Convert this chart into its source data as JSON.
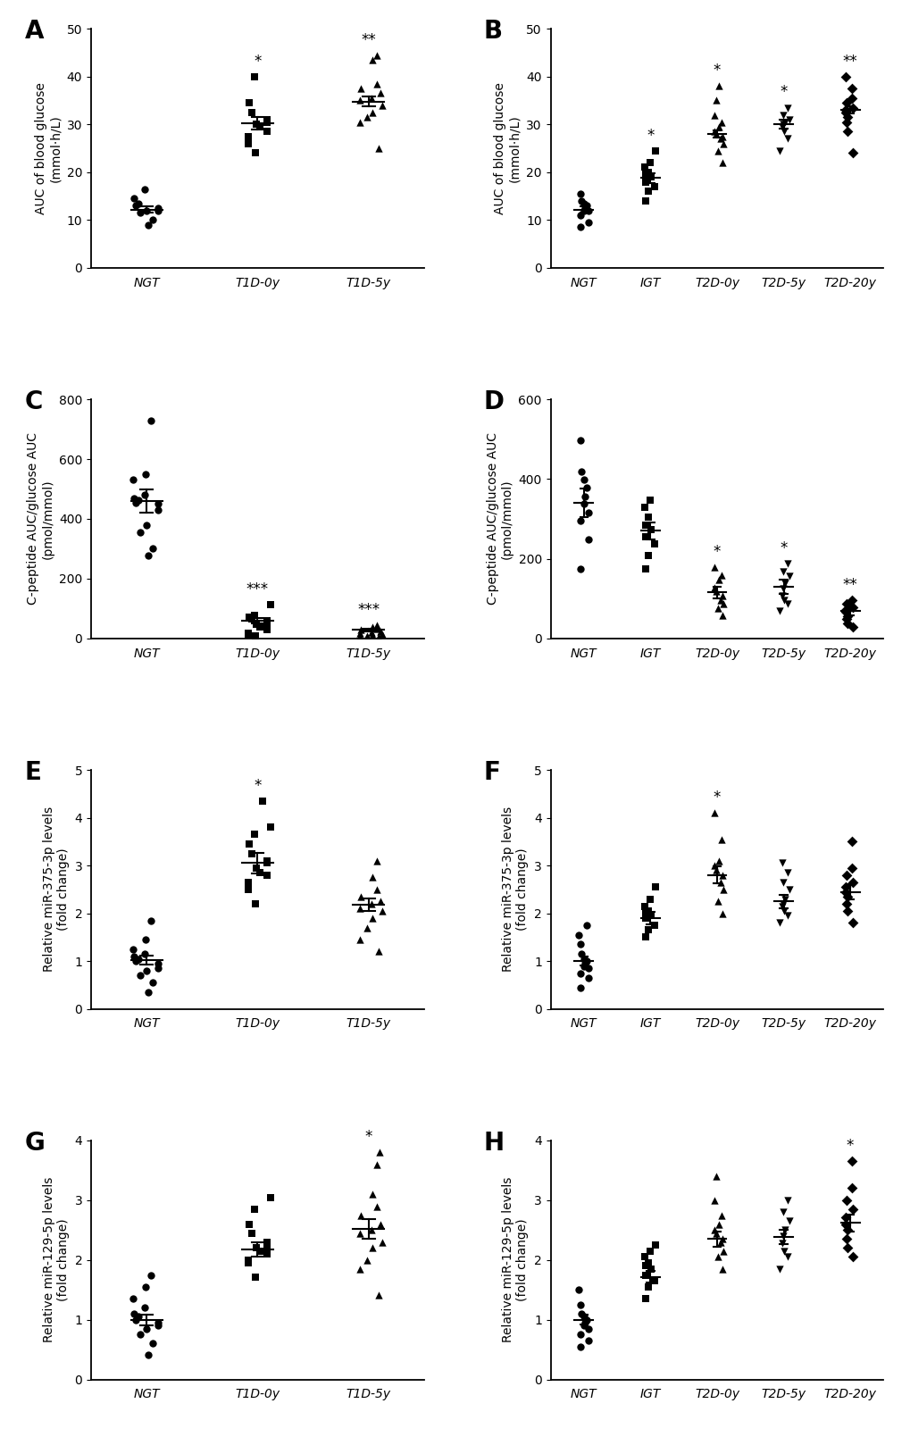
{
  "panels": {
    "A": {
      "label": "A",
      "xlabel_groups": [
        "NGT",
        "T1D-0y",
        "T1D-5y"
      ],
      "ylabel": "AUC of blood glucose\n(mmol·h/L)",
      "ylim": [
        0,
        50
      ],
      "yticks": [
        0,
        10,
        20,
        30,
        40,
        50
      ],
      "markers": [
        "o",
        "s",
        "^"
      ],
      "means": [
        12.2,
        30.2,
        34.8
      ],
      "sems": [
        0.6,
        1.3,
        1.1
      ],
      "significance": [
        "",
        "*",
        "**"
      ],
      "data": [
        [
          9.0,
          10.0,
          11.5,
          12.0,
          12.0,
          12.5,
          13.0,
          13.5,
          14.5,
          16.5
        ],
        [
          24.0,
          26.0,
          27.5,
          28.5,
          29.5,
          30.0,
          30.5,
          31.0,
          32.5,
          34.5,
          40.0
        ],
        [
          25.0,
          30.5,
          31.5,
          32.5,
          34.0,
          35.0,
          35.5,
          36.5,
          37.5,
          38.5,
          43.5,
          44.5
        ]
      ]
    },
    "B": {
      "label": "B",
      "xlabel_groups": [
        "NGT",
        "IGT",
        "T2D-0y",
        "T2D-5y",
        "T2D-20y"
      ],
      "ylabel": "AUC of blood glucose\n(mmol·h/L)",
      "ylim": [
        0,
        50
      ],
      "yticks": [
        0,
        10,
        20,
        30,
        40,
        50
      ],
      "markers": [
        "o",
        "s",
        "^",
        "v",
        "D"
      ],
      "means": [
        12.2,
        18.8,
        28.0,
        30.0,
        33.0
      ],
      "sems": [
        0.6,
        1.0,
        0.7,
        0.9,
        0.8
      ],
      "significance": [
        "",
        "*",
        "*",
        "*",
        "**"
      ],
      "data": [
        [
          8.5,
          9.5,
          11.0,
          12.0,
          12.0,
          12.5,
          13.0,
          13.5,
          14.0,
          15.5
        ],
        [
          14.0,
          16.0,
          17.0,
          18.0,
          19.0,
          19.5,
          20.0,
          21.0,
          22.0,
          24.5
        ],
        [
          22.0,
          24.5,
          26.0,
          27.0,
          27.5,
          28.0,
          28.5,
          29.5,
          30.5,
          32.0,
          35.0,
          38.0
        ],
        [
          24.5,
          27.0,
          28.5,
          29.5,
          30.0,
          30.5,
          31.0,
          32.0,
          33.5
        ],
        [
          24.0,
          28.5,
          30.5,
          31.5,
          32.5,
          33.0,
          33.5,
          34.5,
          35.5,
          37.5,
          40.0
        ]
      ]
    },
    "C": {
      "label": "C",
      "xlabel_groups": [
        "NGT",
        "T1D-0y",
        "T1D-5y"
      ],
      "ylabel": "C-peptide AUC/glucose AUC\n(pmol/mmol)",
      "ylim": [
        0,
        800
      ],
      "yticks": [
        0,
        200,
        400,
        600,
        800
      ],
      "markers": [
        "o",
        "s",
        "^"
      ],
      "means": [
        460,
        58,
        28
      ],
      "sems": [
        38,
        9,
        4
      ],
      "significance": [
        "",
        "***",
        "***"
      ],
      "data": [
        [
          278,
          300,
          355,
          380,
          430,
          450,
          455,
          462,
          470,
          480,
          532,
          548,
          730
        ],
        [
          8,
          12,
          18,
          28,
          38,
          48,
          52,
          58,
          64,
          70,
          78,
          112
        ],
        [
          4,
          7,
          9,
          11,
          14,
          18,
          21,
          24,
          28,
          33,
          38,
          43
        ]
      ]
    },
    "D": {
      "label": "D",
      "xlabel_groups": [
        "NGT",
        "IGT",
        "T2D-0y",
        "T2D-5y",
        "T2D-20y"
      ],
      "ylabel": "C-peptide AUC/glucose AUC\n(pmol/mmol)",
      "ylim": [
        0,
        600
      ],
      "yticks": [
        0,
        200,
        400,
        600
      ],
      "markers": [
        "o",
        "s",
        "^",
        "v",
        "D"
      ],
      "means": [
        340,
        270,
        115,
        130,
        68
      ],
      "sems": [
        35,
        22,
        14,
        18,
        10
      ],
      "significance": [
        "",
        "",
        "*",
        "*",
        "**"
      ],
      "data": [
        [
          175,
          248,
          295,
          315,
          338,
          355,
          378,
          398,
          418,
          498
        ],
        [
          175,
          208,
          238,
          256,
          274,
          285,
          304,
          328,
          348
        ],
        [
          58,
          75,
          88,
          97,
          108,
          118,
          128,
          148,
          158,
          178
        ],
        [
          68,
          88,
          97,
          108,
          126,
          138,
          156,
          167,
          188
        ],
        [
          28,
          38,
          48,
          56,
          67,
          72,
          78,
          88,
          96
        ]
      ]
    },
    "E": {
      "label": "E",
      "xlabel_groups": [
        "NGT",
        "T1D-0y",
        "T1D-5y"
      ],
      "ylabel": "Relative miR-375-3p levels\n(fold change)",
      "ylim": [
        0,
        5
      ],
      "yticks": [
        0,
        1,
        2,
        3,
        4,
        5
      ],
      "markers": [
        "o",
        "s",
        "^"
      ],
      "means": [
        1.02,
        3.05,
        2.18
      ],
      "sems": [
        0.1,
        0.22,
        0.13
      ],
      "significance": [
        "",
        "*",
        ""
      ],
      "data": [
        [
          0.35,
          0.55,
          0.7,
          0.8,
          0.85,
          0.95,
          1.0,
          1.05,
          1.1,
          1.15,
          1.25,
          1.45,
          1.85
        ],
        [
          2.2,
          2.5,
          2.65,
          2.8,
          2.85,
          2.95,
          3.05,
          3.1,
          3.25,
          3.45,
          3.65,
          3.8,
          4.35
        ],
        [
          1.2,
          1.45,
          1.7,
          1.9,
          2.05,
          2.1,
          2.2,
          2.25,
          2.35,
          2.5,
          2.75,
          3.1
        ]
      ]
    },
    "F": {
      "label": "F",
      "xlabel_groups": [
        "NGT",
        "IGT",
        "T2D-0y",
        "T2D-5y",
        "T2D-20y"
      ],
      "ylabel": "Relative miR-375-3p levels\n(fold change)",
      "ylim": [
        0,
        5
      ],
      "yticks": [
        0,
        1,
        2,
        3,
        4,
        5
      ],
      "markers": [
        "o",
        "s",
        "^",
        "v",
        "D"
      ],
      "means": [
        1.0,
        1.9,
        2.8,
        2.25,
        2.45
      ],
      "sems": [
        0.09,
        0.13,
        0.18,
        0.14,
        0.16
      ],
      "significance": [
        "",
        "",
        "*",
        "",
        ""
      ],
      "data": [
        [
          0.45,
          0.65,
          0.75,
          0.85,
          0.9,
          0.95,
          1.0,
          1.05,
          1.15,
          1.35,
          1.55,
          1.75
        ],
        [
          1.5,
          1.65,
          1.75,
          1.9,
          1.95,
          2.0,
          2.05,
          2.15,
          2.3,
          2.55
        ],
        [
          2.0,
          2.25,
          2.5,
          2.65,
          2.8,
          2.9,
          3.0,
          3.1,
          3.55,
          4.1
        ],
        [
          1.8,
          1.95,
          2.05,
          2.15,
          2.2,
          2.3,
          2.5,
          2.65,
          2.85,
          3.05
        ],
        [
          1.8,
          2.05,
          2.2,
          2.35,
          2.45,
          2.55,
          2.65,
          2.8,
          2.95,
          3.5
        ]
      ]
    },
    "G": {
      "label": "G",
      "xlabel_groups": [
        "NGT",
        "T1D-0y",
        "T1D-5y"
      ],
      "ylabel": "Relative miR-129-5p levels\n(fold change)",
      "ylim": [
        0,
        4
      ],
      "yticks": [
        0,
        1,
        2,
        3,
        4
      ],
      "markers": [
        "o",
        "s",
        "^"
      ],
      "means": [
        1.0,
        2.18,
        2.52
      ],
      "sems": [
        0.09,
        0.12,
        0.16
      ],
      "significance": [
        "",
        "",
        "*"
      ],
      "data": [
        [
          0.42,
          0.6,
          0.75,
          0.85,
          0.9,
          0.95,
          1.0,
          1.05,
          1.1,
          1.2,
          1.35,
          1.55,
          1.75
        ],
        [
          1.72,
          1.95,
          2.0,
          2.1,
          2.15,
          2.2,
          2.22,
          2.3,
          2.45,
          2.6,
          2.85,
          3.05
        ],
        [
          1.42,
          1.85,
          2.0,
          2.2,
          2.3,
          2.45,
          2.5,
          2.6,
          2.75,
          2.9,
          3.1,
          3.6,
          3.8
        ]
      ]
    },
    "H": {
      "label": "H",
      "xlabel_groups": [
        "NGT",
        "IGT",
        "T2D-0y",
        "T2D-5y",
        "T2D-20y"
      ],
      "ylabel": "Relative miR-129-5p levels\n(fold change)",
      "ylim": [
        0,
        4
      ],
      "yticks": [
        0,
        1,
        2,
        3,
        4
      ],
      "markers": [
        "o",
        "s",
        "^",
        "v",
        "D"
      ],
      "means": [
        1.0,
        1.72,
        2.35,
        2.38,
        2.62
      ],
      "sems": [
        0.08,
        0.1,
        0.13,
        0.12,
        0.14
      ],
      "significance": [
        "",
        "",
        "",
        "",
        "*"
      ],
      "data": [
        [
          0.55,
          0.65,
          0.75,
          0.85,
          0.9,
          0.95,
          1.0,
          1.05,
          1.1,
          1.25,
          1.5
        ],
        [
          1.35,
          1.55,
          1.65,
          1.75,
          1.85,
          1.9,
          1.95,
          2.05,
          2.15,
          2.25
        ],
        [
          1.85,
          2.05,
          2.15,
          2.3,
          2.35,
          2.45,
          2.5,
          2.6,
          2.75,
          3.0,
          3.4
        ],
        [
          1.85,
          2.05,
          2.15,
          2.28,
          2.4,
          2.5,
          2.65,
          2.8,
          3.0
        ],
        [
          2.05,
          2.2,
          2.35,
          2.5,
          2.6,
          2.72,
          2.85,
          3.0,
          3.2,
          3.65
        ]
      ]
    }
  },
  "marker_color": "#000000",
  "markersize": 6,
  "linewidth": 1.5,
  "sig_fontsize": 12,
  "ylabel_fontsize": 10,
  "tick_fontsize": 10,
  "panel_label_fontsize": 20
}
